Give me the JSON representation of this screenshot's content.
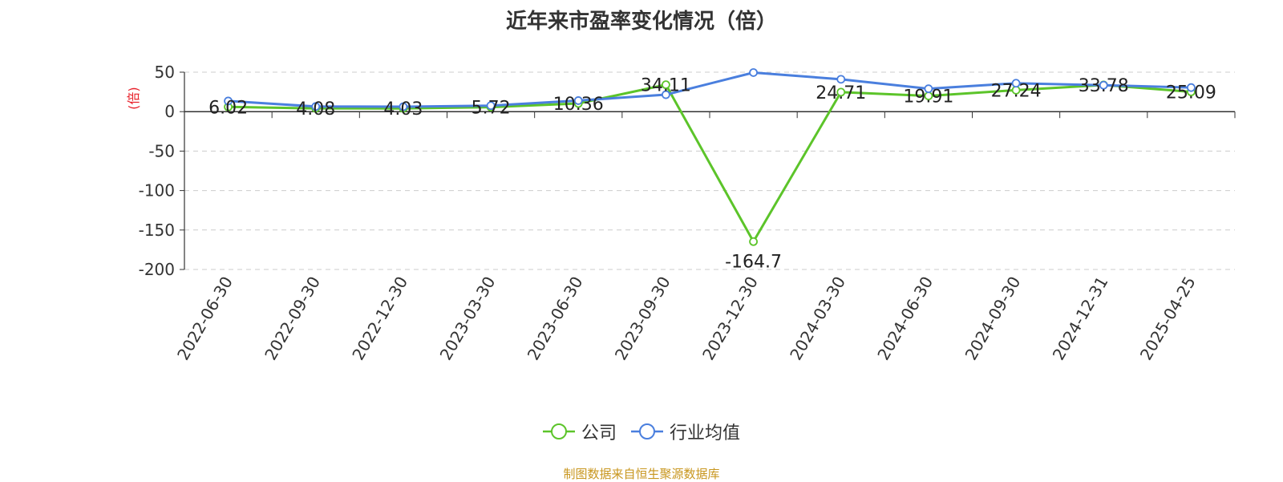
{
  "chart_data": {
    "type": "line",
    "title": "近年来市盈率变化情况（倍）",
    "ylabel": "(倍)",
    "xlabel": "",
    "categories": [
      "2022-06-30",
      "2022-09-30",
      "2022-12-30",
      "2023-03-30",
      "2023-06-30",
      "2023-09-30",
      "2023-12-30",
      "2024-03-30",
      "2024-06-30",
      "2024-09-30",
      "2024-12-31",
      "2025-04-25"
    ],
    "ylim": [
      -200,
      50
    ],
    "yticks": [
      50,
      0,
      -50,
      -100,
      -150,
      -200
    ],
    "grid": true,
    "legend_position": "bottom",
    "series": [
      {
        "name": "公司",
        "color": "#5cc42a",
        "values": [
          6.02,
          4.08,
          4.03,
          5.72,
          10.36,
          34.11,
          -164.7,
          24.71,
          19.91,
          27.24,
          33.78,
          25.09
        ],
        "labels": [
          "6.02",
          "4.08",
          "4.03",
          "5.72",
          "10.36",
          "34.11",
          "-164.7",
          "24.71",
          "19.91",
          "27.24",
          "33.78",
          "25.09"
        ]
      },
      {
        "name": "行业均值",
        "color": "#4a7fde",
        "values": [
          13.5,
          6.5,
          6.3,
          7.6,
          14.0,
          21.5,
          49.5,
          41.0,
          29.0,
          36.0,
          33.5,
          30.5
        ]
      }
    ]
  },
  "footer": {
    "source": "制图数据来自恒生聚源数据库"
  }
}
